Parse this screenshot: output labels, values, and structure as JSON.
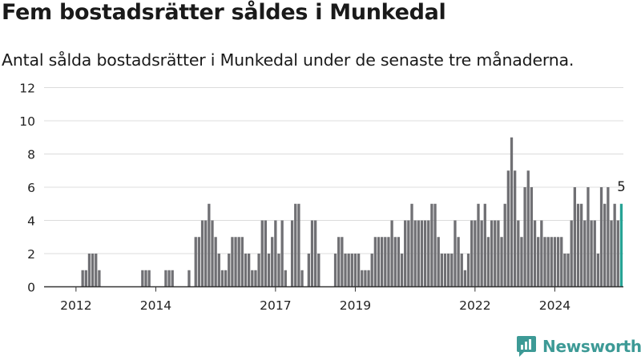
{
  "title": "Fem bostadsrätter såldes i Munkedal",
  "subtitle": "Antal sålda bostadsrätter i Munkedal under de senaste tre månaderna.",
  "brand": {
    "name": "Newsworthy",
    "icon": "newsworthy-logo-icon",
    "color": "#3d9a96"
  },
  "colors": {
    "bar": "#707074",
    "highlight": "#27a395",
    "grid": "#dcdcdc",
    "axis": "#333333"
  },
  "chart_data": {
    "type": "bar",
    "title": "Fem bostadsrätter såldes i Munkedal",
    "subtitle": "Antal sålda bostadsrätter i Munkedal under de senaste tre månaderna.",
    "xlabel": "",
    "ylabel": "",
    "ylim": [
      0,
      12
    ],
    "yticks": [
      0,
      2,
      4,
      6,
      8,
      10,
      12
    ],
    "grid": true,
    "legend": "none",
    "x_ticks": [
      {
        "label": "2012",
        "index": 8
      },
      {
        "label": "2014",
        "index": 32
      },
      {
        "label": "2017",
        "index": 68
      },
      {
        "label": "2019",
        "index": 92
      },
      {
        "label": "2022",
        "index": 128
      },
      {
        "label": "2024",
        "index": 152
      }
    ],
    "values": [
      0,
      0,
      0,
      0,
      0,
      0,
      0,
      0,
      0,
      0,
      1,
      1,
      2,
      2,
      2,
      1,
      0,
      0,
      0,
      0,
      0,
      0,
      0,
      0,
      0,
      0,
      0,
      0,
      1,
      1,
      1,
      0,
      0,
      0,
      0,
      1,
      1,
      1,
      0,
      0,
      0,
      0,
      1,
      0,
      3,
      3,
      4,
      4,
      5,
      4,
      3,
      2,
      1,
      1,
      2,
      3,
      3,
      3,
      3,
      2,
      2,
      1,
      1,
      2,
      4,
      4,
      2,
      3,
      4,
      2,
      4,
      1,
      0,
      4,
      5,
      5,
      1,
      0,
      2,
      4,
      4,
      2,
      0,
      0,
      0,
      0,
      2,
      3,
      3,
      2,
      2,
      2,
      2,
      2,
      1,
      1,
      1,
      2,
      3,
      3,
      3,
      3,
      3,
      4,
      3,
      3,
      2,
      4,
      4,
      5,
      4,
      4,
      4,
      4,
      4,
      5,
      5,
      3,
      2,
      2,
      2,
      2,
      4,
      3,
      2,
      1,
      2,
      4,
      4,
      5,
      4,
      5,
      3,
      4,
      4,
      4,
      3,
      5,
      7,
      9,
      7,
      4,
      3,
      6,
      7,
      6,
      4,
      3,
      4,
      3,
      3,
      3,
      3,
      3,
      3,
      2,
      2,
      4,
      6,
      5,
      5,
      4,
      6,
      4,
      4,
      2,
      6,
      5,
      6,
      4,
      5,
      4,
      5
    ],
    "highlight_last": true,
    "annotations": [
      {
        "text": "5",
        "target": "last"
      }
    ]
  }
}
